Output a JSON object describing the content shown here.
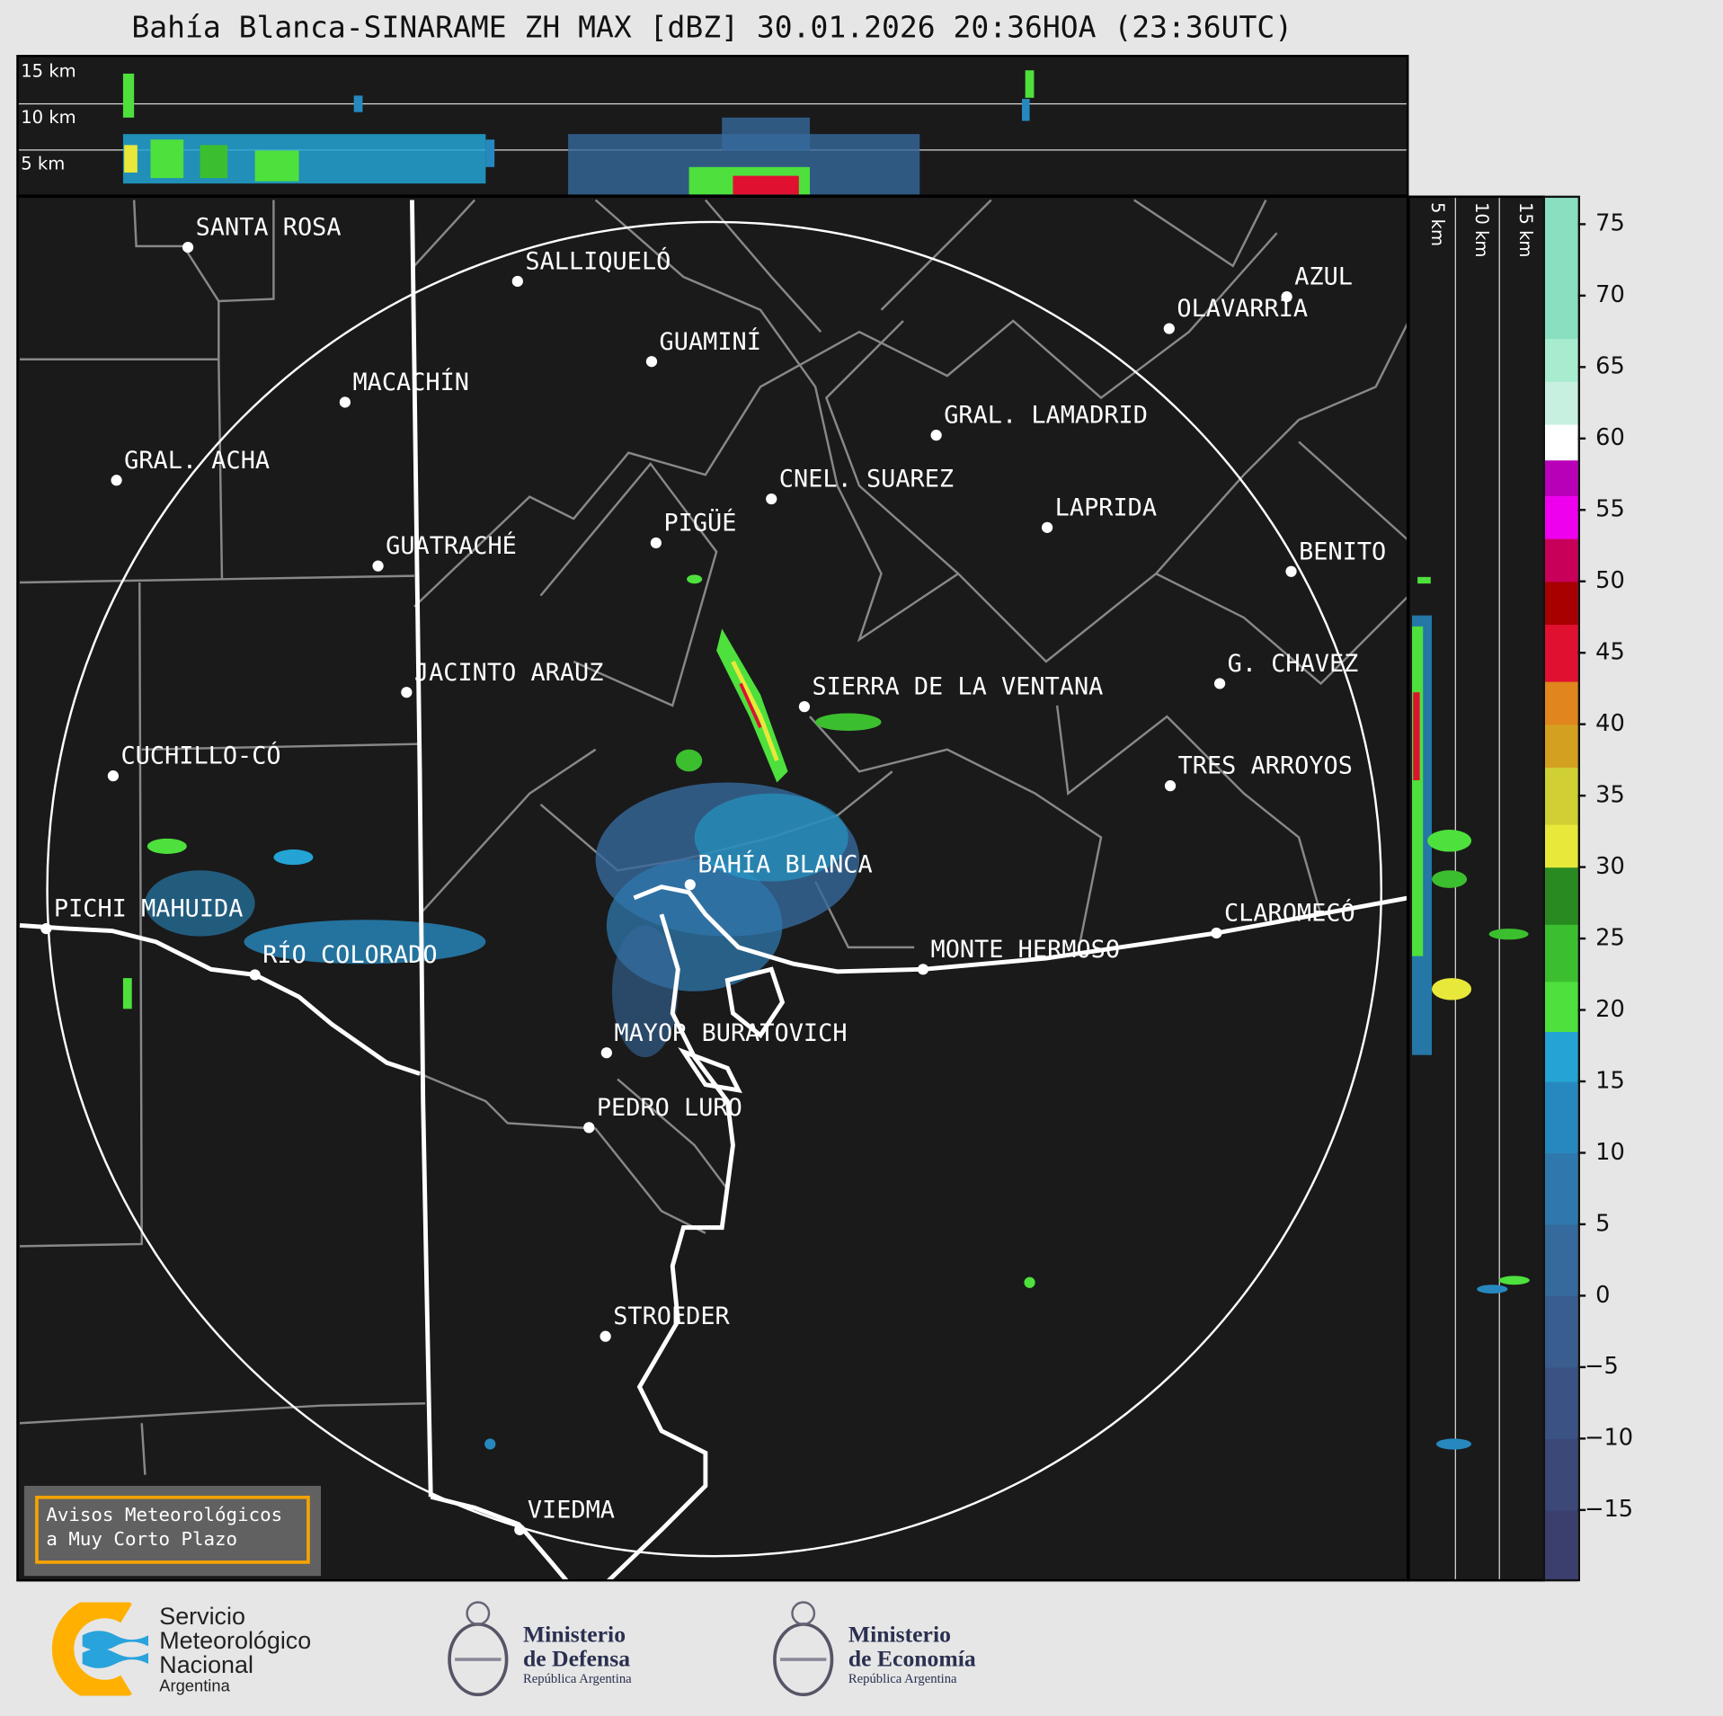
{
  "title": "Bahía Blanca-SINARAME ZH MAX [dBZ] 30.01.2026 20:36HOA (23:36UTC)",
  "top_panel": {
    "height_labels": [
      "15 km",
      "10 km",
      "5 km"
    ]
  },
  "side_panel": {
    "height_labels": [
      "5 km",
      "10 km",
      "15 km"
    ]
  },
  "cities": [
    "SANTA ROSA",
    "SALLIQUELÓ",
    "GUAMINÍ",
    "MACACHÍN",
    "GRAL. ACHA",
    "GUATRACHÉ",
    "PIGÜÉ",
    "CNEL. SUAREZ",
    "GRAL. LAMADRID",
    "LAPRIDA",
    "OLAVARRÍA",
    "AZUL",
    "BENITO",
    "G. CHAVEZ",
    "SIERRA DE LA VENTANA",
    "JACINTO ARAUZ",
    "CUCHILLO-CÓ",
    "TRES ARROYOS",
    "BAHÍA BLANCA",
    "PICHI MAHUIDA",
    "RÍO COLORADO",
    "CLAROMECÓ",
    "MONTE HERMOSO",
    "MAYOR BURATOVICH",
    "PEDRO LURO",
    "STROEDER",
    "VIEDMA"
  ],
  "colorbar": {
    "unit": "dBZ",
    "range": [
      -20,
      77
    ],
    "ticks": [
      "75",
      "70",
      "65",
      "60",
      "55",
      "50",
      "45",
      "40",
      "35",
      "30",
      "25",
      "20",
      "15",
      "10",
      "5",
      "0",
      "−5",
      "−10",
      "−15"
    ],
    "bands": [
      {
        "from": -20,
        "to": -15,
        "color": "#3a3f6e"
      },
      {
        "from": -15,
        "to": -10,
        "color": "#3b4878"
      },
      {
        "from": -10,
        "to": -5,
        "color": "#3b5284"
      },
      {
        "from": -5,
        "to": 0,
        "color": "#3a5d90"
      },
      {
        "from": 0,
        "to": 5,
        "color": "#36699c"
      },
      {
        "from": 5,
        "to": 10,
        "color": "#2f78ad"
      },
      {
        "from": 10,
        "to": 15,
        "color": "#2788bf"
      },
      {
        "from": 15,
        "to": 18.5,
        "color": "#23a4d4"
      },
      {
        "from": 18.5,
        "to": 22,
        "color": "#4ee03c"
      },
      {
        "from": 22,
        "to": 26,
        "color": "#3cbf2f"
      },
      {
        "from": 26,
        "to": 30,
        "color": "#2a8a22"
      },
      {
        "from": 30,
        "to": 33,
        "color": "#e8e83a"
      },
      {
        "from": 33,
        "to": 37,
        "color": "#d0cf33"
      },
      {
        "from": 37,
        "to": 40,
        "color": "#d4a020"
      },
      {
        "from": 40,
        "to": 43,
        "color": "#e0861c"
      },
      {
        "from": 43,
        "to": 47,
        "color": "#e01030"
      },
      {
        "from": 47,
        "to": 50,
        "color": "#a80000"
      },
      {
        "from": 50,
        "to": 53,
        "color": "#c8005a"
      },
      {
        "from": 53,
        "to": 56,
        "color": "#ee00ee"
      },
      {
        "from": 56,
        "to": 58.5,
        "color": "#b800b8"
      },
      {
        "from": 58.5,
        "to": 61,
        "color": "#ffffff"
      },
      {
        "from": 61,
        "to": 64,
        "color": "#c8f0e0"
      },
      {
        "from": 64,
        "to": 67,
        "color": "#a8ecd0"
      },
      {
        "from": 67,
        "to": 77,
        "color": "#8adfc0"
      }
    ]
  },
  "avisos": {
    "line1": "Avisos Meteorológicos",
    "line2": "a Muy Corto Plazo"
  },
  "logos": {
    "smn": [
      "Servicio",
      "Meteorológico",
      "Nacional",
      "Argentina"
    ],
    "defensa": [
      "Ministerio",
      "de Defensa",
      "República Argentina"
    ],
    "economia": [
      "Ministerio",
      "de Economía",
      "República Argentina"
    ]
  },
  "colors": {
    "background": "#1a1a1a",
    "smn_orange": "#ffb000",
    "smn_blue": "#29a3dc",
    "avisos_border": "#f5a300"
  }
}
